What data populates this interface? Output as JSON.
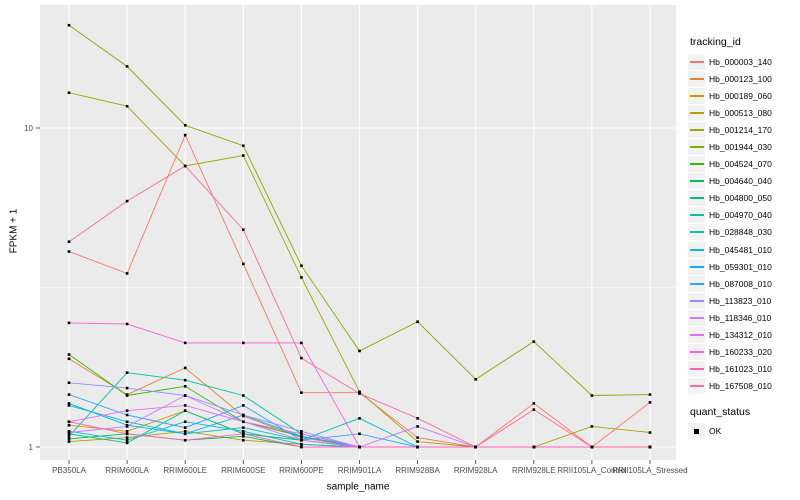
{
  "figure": {
    "background": "#FFFFFF",
    "panel_background": "#EBEBEB",
    "gridline_color": "#FFFFFF",
    "axis_text_color": "#4D4D4D",
    "tick_color": "#333333",
    "marker_color": "#000000",
    "legend_key_background": "#F2F2F2"
  },
  "chart_data": {
    "type": "line",
    "title": "",
    "xlabel": "sample_name",
    "ylabel": "FPKM + 1",
    "y_scale": "log10",
    "y_tick_labels": [
      "1",
      "10"
    ],
    "y_tick_values": [
      1,
      10
    ],
    "y_minor_gridline_values": [
      3.162
    ],
    "ylim": [
      0.93,
      24
    ],
    "grid": "major-white-on-gray",
    "legend_position": "right",
    "point_shape": "filled-black-square",
    "categories": [
      "PB350LA",
      "RRIM600LA",
      "RRIM600LE",
      "RRIM600SE",
      "RRIM600PE",
      "RRIM901LA",
      "RRIM928BA",
      "RRIM928LA",
      "RRIM928LE",
      "RRII105LA_Control",
      "RRII105LA_Stressed"
    ],
    "series": [
      {
        "name": "Hb_000003_140",
        "color": "#F8766D",
        "values": [
          4.1,
          3.5,
          9.5,
          3.75,
          1.48,
          1.48,
          1.07,
          1.0,
          1.37,
          1.0,
          1.38
        ]
      },
      {
        "name": "Hb_000123_100",
        "color": "#EA8331",
        "values": [
          1.89,
          1.46,
          1.77,
          1.25,
          1.07,
          1.0,
          1.0,
          1.0,
          1.0,
          1.0,
          1.0
        ]
      },
      {
        "name": "Hb_000189_060",
        "color": "#D89000",
        "values": [
          1.17,
          1.12,
          1.3,
          1.1,
          1.05,
          1.0,
          1.0,
          1.0,
          1.0,
          1.0,
          1.0
        ]
      },
      {
        "name": "Hb_000513_080",
        "color": "#C09B00",
        "values": [
          1.04,
          1.07,
          1.12,
          1.05,
          1.02,
          1.0,
          1.0,
          1.0,
          1.0,
          1.0,
          1.0
        ]
      },
      {
        "name": "Hb_001214_170",
        "color": "#A3A500",
        "values": [
          12.9,
          11.7,
          7.6,
          8.2,
          3.4,
          1.49,
          1.04,
          1.0,
          1.0,
          1.16,
          1.11
        ]
      },
      {
        "name": "Hb_001944_030",
        "color": "#7CAE00",
        "values": [
          21.0,
          15.6,
          10.2,
          8.8,
          3.7,
          2.0,
          2.47,
          1.63,
          2.14,
          1.45,
          1.46
        ]
      },
      {
        "name": "Hb_004524_070",
        "color": "#39B600",
        "values": [
          1.95,
          1.45,
          1.55,
          1.2,
          1.08,
          1.0,
          1.0,
          1.0,
          1.0,
          1.0,
          1.0
        ]
      },
      {
        "name": "Hb_004640_040",
        "color": "#00BB4E",
        "values": [
          1.06,
          1.1,
          1.05,
          1.08,
          1.0,
          1.0,
          1.0,
          1.0,
          1.0,
          1.0,
          1.0
        ]
      },
      {
        "name": "Hb_004800_050",
        "color": "#00BF7D",
        "values": [
          1.1,
          1.03,
          1.3,
          1.1,
          1.05,
          1.0,
          1.0,
          1.0,
          1.0,
          1.0,
          1.0
        ]
      },
      {
        "name": "Hb_004970_040",
        "color": "#00C1A3",
        "values": [
          1.08,
          1.71,
          1.62,
          1.45,
          1.1,
          1.0,
          1.0,
          1.0,
          1.0,
          1.0,
          1.0
        ]
      },
      {
        "name": "Hb_028848_030",
        "color": "#00BFC4",
        "values": [
          1.35,
          1.2,
          1.1,
          1.15,
          1.05,
          1.23,
          1.0,
          1.0,
          1.0,
          1.0,
          1.0
        ]
      },
      {
        "name": "Hb_045481_010",
        "color": "#00BAE0",
        "values": [
          1.12,
          1.05,
          1.2,
          1.12,
          1.02,
          1.0,
          1.0,
          1.0,
          1.0,
          1.0,
          1.0
        ]
      },
      {
        "name": "Hb_059301_010",
        "color": "#00B0F6",
        "values": [
          1.37,
          1.17,
          1.1,
          1.26,
          1.08,
          1.0,
          1.0,
          1.0,
          1.0,
          1.0,
          1.0
        ]
      },
      {
        "name": "Hb_087008_010",
        "color": "#35A2FF",
        "values": [
          1.46,
          1.26,
          1.15,
          1.35,
          1.05,
          1.1,
          1.0,
          1.0,
          1.0,
          1.0,
          1.0
        ]
      },
      {
        "name": "Hb_113823_010",
        "color": "#9590FF",
        "values": [
          1.59,
          1.53,
          1.45,
          1.26,
          1.12,
          1.0,
          1.0,
          1.0,
          1.0,
          1.0,
          1.0
        ]
      },
      {
        "name": "Hb_118346_010",
        "color": "#C77CFF",
        "values": [
          1.11,
          1.16,
          1.45,
          1.2,
          1.05,
          1.0,
          1.16,
          1.0,
          1.0,
          1.0,
          1.0
        ]
      },
      {
        "name": "Hb_134312_010",
        "color": "#E76BF3",
        "values": [
          1.2,
          1.3,
          1.35,
          1.2,
          1.1,
          1.0,
          1.0,
          1.0,
          1.0,
          1.0,
          1.0
        ]
      },
      {
        "name": "Hb_160233_020",
        "color": "#FA62DB",
        "values": [
          2.45,
          2.43,
          2.12,
          2.12,
          2.12,
          1.0,
          1.0,
          1.0,
          1.0,
          1.0,
          1.0
        ]
      },
      {
        "name": "Hb_161023_010",
        "color": "#FF62BC",
        "values": [
          1.2,
          1.1,
          1.05,
          1.1,
          1.0,
          1.0,
          1.0,
          1.0,
          1.0,
          1.0,
          1.0
        ]
      },
      {
        "name": "Hb_167508_010",
        "color": "#FF6A98",
        "values": [
          4.4,
          5.9,
          7.6,
          4.8,
          1.9,
          1.47,
          1.23,
          1.0,
          1.31,
          1.0,
          1.0
        ]
      }
    ]
  },
  "legend": {
    "tracking_title": "tracking_id",
    "quant_title": "quant_status",
    "quant_items": [
      {
        "label": "OK",
        "shape": "black-square"
      }
    ]
  }
}
